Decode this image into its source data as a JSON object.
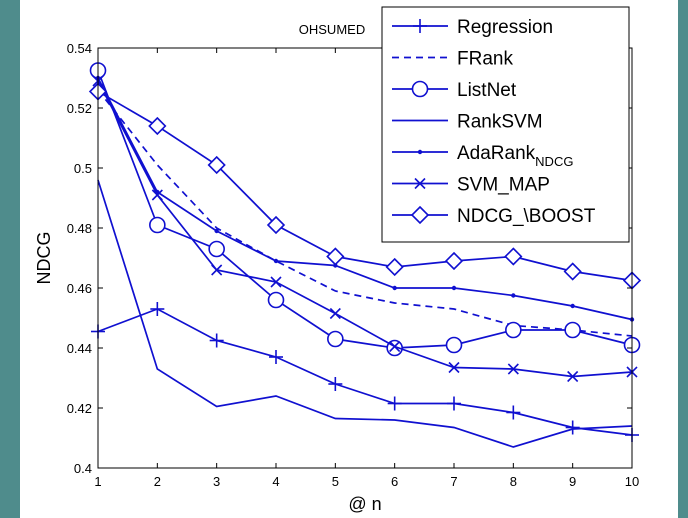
{
  "chart_data": {
    "type": "line",
    "title": "OHSUMED",
    "xlabel": "@ n",
    "ylabel": "NDCG",
    "x": [
      1,
      2,
      3,
      4,
      5,
      6,
      7,
      8,
      9,
      10
    ],
    "xlim": [
      1,
      10
    ],
    "ylim": [
      0.4,
      0.54
    ],
    "xticks": [
      "1",
      "2",
      "3",
      "4",
      "5",
      "6",
      "7",
      "8",
      "9",
      "10"
    ],
    "yticks": [
      "0.4",
      "0.42",
      "0.44",
      "0.46",
      "0.48",
      "0.5",
      "0.52",
      "0.54"
    ],
    "grid": false,
    "legend_position": "top-right",
    "line_color": "#1010d0",
    "series": [
      {
        "name": "Regression",
        "style": "solid",
        "marker": "plus",
        "values": [
          0.4455,
          0.453,
          0.4425,
          0.437,
          0.428,
          0.4215,
          0.4215,
          0.4185,
          0.4135,
          0.411
        ]
      },
      {
        "name": "FRank",
        "style": "dashed",
        "marker": "none",
        "values": [
          0.526,
          0.501,
          0.48,
          0.469,
          0.459,
          0.455,
          0.453,
          0.4475,
          0.446,
          0.444
        ]
      },
      {
        "name": "ListNet",
        "style": "solid",
        "marker": "circle",
        "values": [
          0.5325,
          0.481,
          0.473,
          0.456,
          0.443,
          0.44,
          0.441,
          0.446,
          0.446,
          0.441
        ]
      },
      {
        "name": "RankSVM",
        "style": "solid",
        "marker": "none",
        "values": [
          0.496,
          0.433,
          0.4205,
          0.424,
          0.4165,
          0.416,
          0.4135,
          0.407,
          0.413,
          0.414
        ]
      },
      {
        "name": "AdaRank",
        "name_sub": "NDCG",
        "style": "solid",
        "marker": "dot",
        "values": [
          0.53,
          0.492,
          0.479,
          0.469,
          0.4675,
          0.46,
          0.46,
          0.4575,
          0.454,
          0.4495
        ]
      },
      {
        "name": "SVM_MAP",
        "style": "solid",
        "marker": "x",
        "values": [
          0.529,
          0.491,
          0.466,
          0.462,
          0.4515,
          0.4405,
          0.4335,
          0.433,
          0.4305,
          0.432
        ]
      },
      {
        "name": "NDCG_\\BOOST",
        "style": "solid",
        "marker": "diamond",
        "values": [
          0.5255,
          0.514,
          0.501,
          0.481,
          0.4705,
          0.467,
          0.469,
          0.4705,
          0.4655,
          0.4625
        ]
      }
    ]
  }
}
